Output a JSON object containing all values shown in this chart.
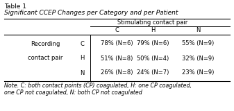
{
  "title": "Table 1",
  "subtitle": "Significant CCEP Changes per Category and per Patient",
  "stimulating_header": "Stimulating contact pair",
  "col_headers": [
    "C",
    "H",
    "N"
  ],
  "row_group_label_line1": "Recording",
  "row_group_label_line2": "contact pair",
  "row_labels": [
    "C",
    "H",
    "N"
  ],
  "data": [
    [
      "78% (N=6)",
      "79% (N=6)",
      "55% (N=9)"
    ],
    [
      "51% (N=8)",
      "50% (N=4)",
      "32% (N=9)"
    ],
    [
      "26% (N=8)",
      "24% (N=7)",
      "23% (N=9)"
    ]
  ],
  "note_line1": "Note. C: both contact points (CP) coagulated, H: one CP coagulated,",
  "note_line2": "one CP not coagulated, N: both CP not coagulated",
  "bg_color": "#ffffff",
  "font_size": 6.0,
  "title_font_size": 6.5,
  "subtitle_font_size": 6.5
}
